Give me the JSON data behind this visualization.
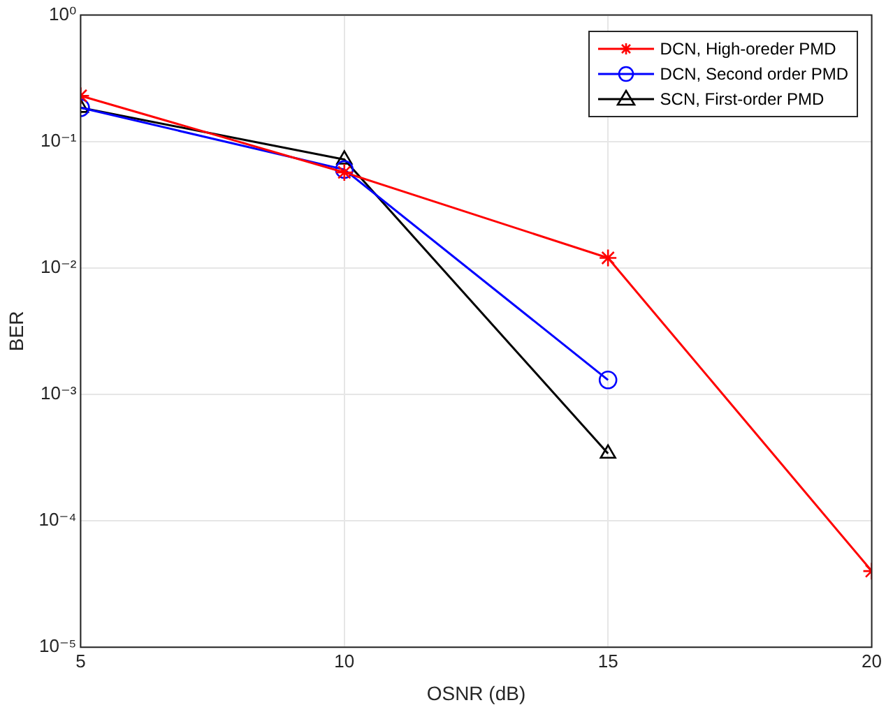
{
  "chart_data": {
    "type": "line",
    "xlabel": "OSNR (dB)",
    "ylabel": "BER",
    "log": "y",
    "grid": true,
    "legend": "top right",
    "xlim": [
      5,
      20
    ],
    "xticks": [
      5,
      10,
      15,
      20
    ],
    "ylim": [
      1e-05,
      1
    ],
    "yticks": [
      {
        "value": 1e-05,
        "label": "10⁻⁵"
      },
      {
        "value": 0.0001,
        "label": "10⁻⁴"
      },
      {
        "value": 0.001,
        "label": "10⁻³"
      },
      {
        "value": 0.01,
        "label": "10⁻²"
      },
      {
        "value": 0.1,
        "label": "10⁻¹"
      },
      {
        "value": 1,
        "label": "10⁰"
      }
    ],
    "x": [
      5,
      10,
      15,
      20
    ],
    "series": [
      {
        "name": "DCN, High-oreder PMD",
        "color": "#ff0000",
        "marker": "cross",
        "values": [
          0.23,
          0.057,
          0.012,
          4e-05
        ]
      },
      {
        "name": "DCN, Second order PMD",
        "color": "#0000ff",
        "marker": "circle",
        "values": [
          0.185,
          0.06,
          0.0013,
          null
        ]
      },
      {
        "name": "SCN, First-order PMD",
        "color": "#000000",
        "marker": "triangle",
        "values": [
          0.185,
          0.072,
          0.00034,
          null
        ]
      }
    ]
  }
}
